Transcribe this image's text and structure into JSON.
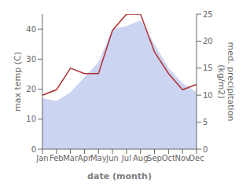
{
  "chart_data": {
    "type": "area",
    "xlabel": "date (month)",
    "ylabel": "max temp (C)",
    "y2label": "med. precipitation\n(kg/m2)",
    "categories": [
      "Jan",
      "Feb",
      "Mar",
      "Apr",
      "May",
      "Jun",
      "Jul",
      "Aug",
      "Sep",
      "Oct",
      "Nov",
      "Dec"
    ],
    "series": [
      {
        "type": "area",
        "color": "#c5cff0",
        "values": [
          17,
          16,
          19,
          24,
          29,
          40,
          41,
          43,
          35,
          27,
          22,
          19
        ]
      },
      {
        "type": "line",
        "axis": "y2",
        "color": "#b03030",
        "values": [
          10,
          11,
          15,
          14,
          14,
          22,
          25,
          25,
          18,
          14,
          11,
          12
        ]
      }
    ],
    "ylim": [
      0,
      45
    ],
    "yticks": [
      0,
      10,
      20,
      30,
      40
    ],
    "y2lim": [
      0,
      25
    ],
    "y2ticks": [
      0,
      5,
      10,
      15,
      20,
      25
    ],
    "grid": false
  }
}
